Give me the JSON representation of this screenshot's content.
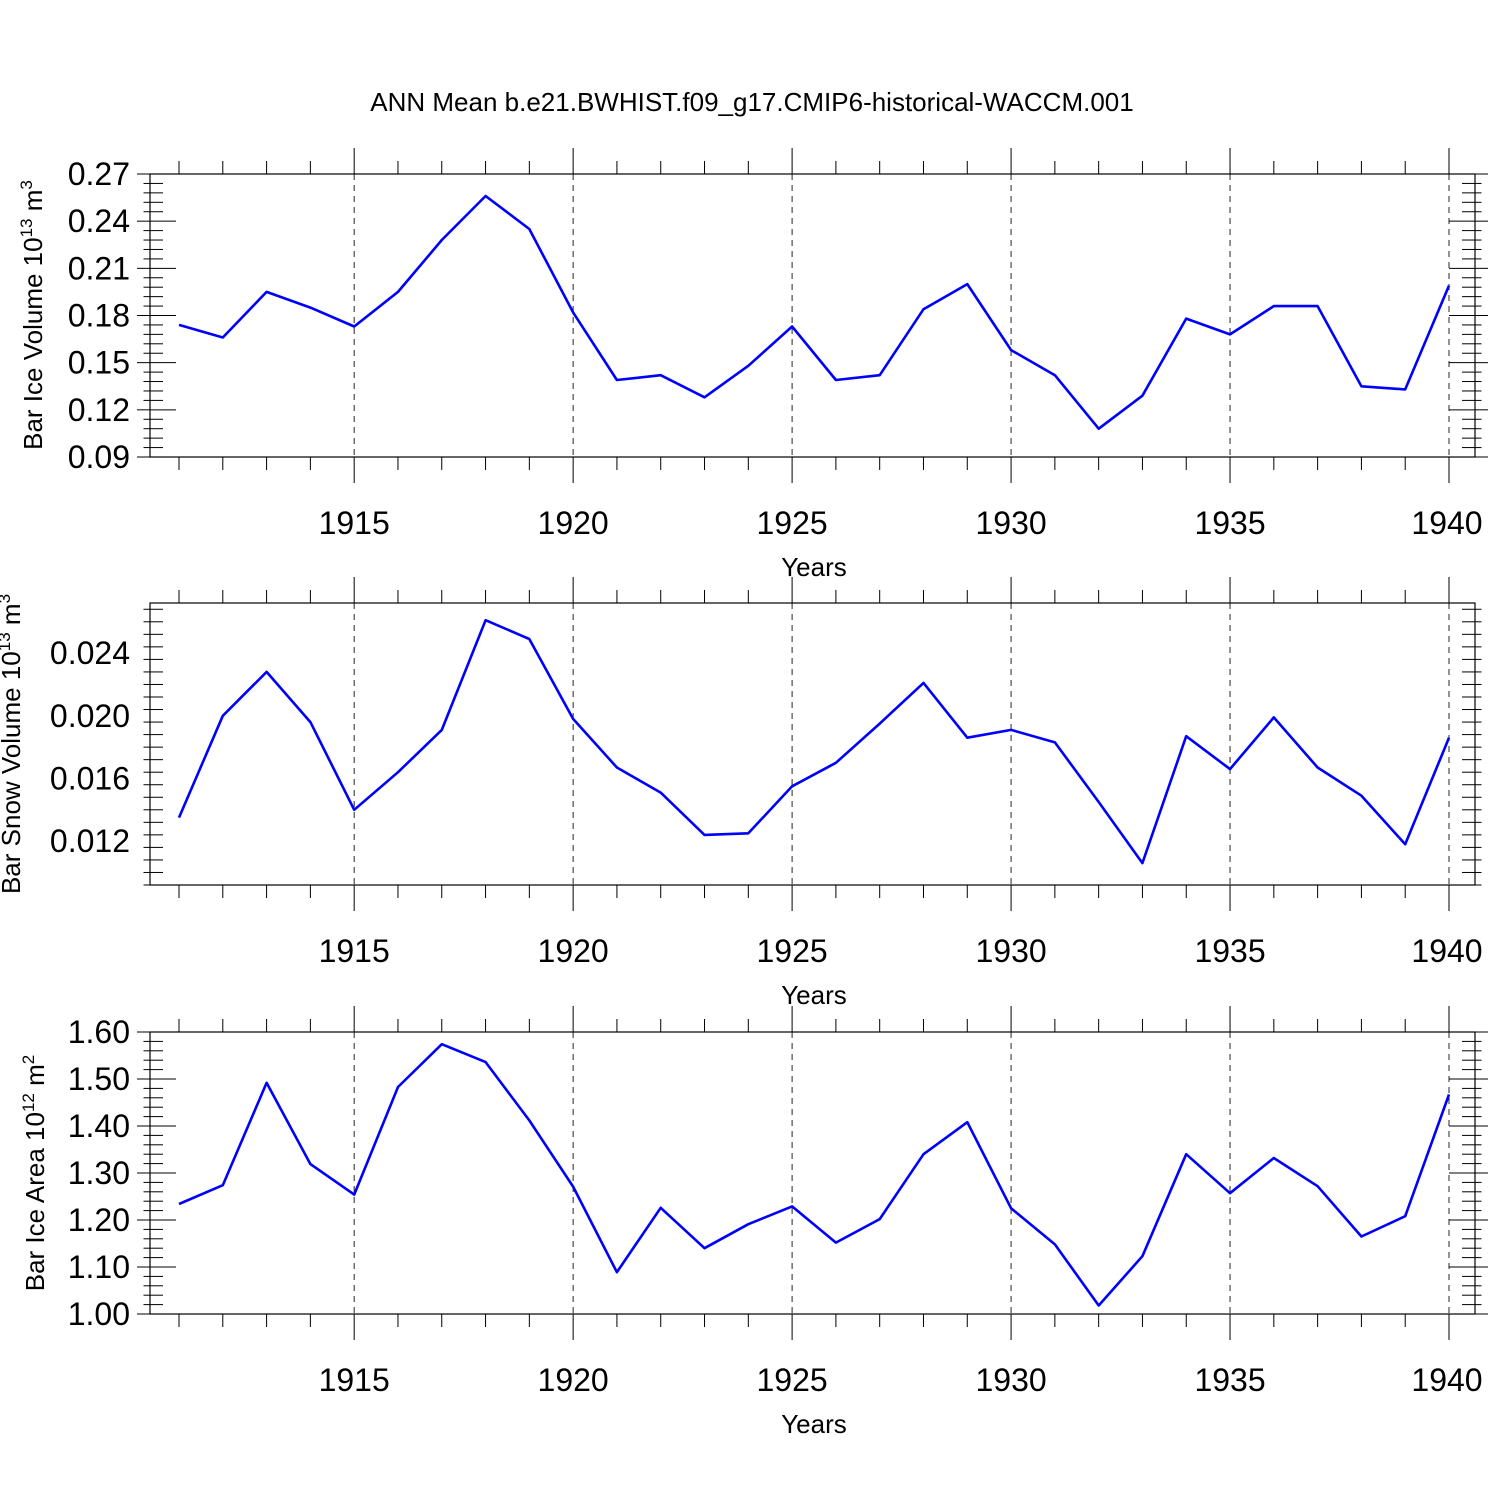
{
  "title": "ANN Mean b.e21.BWHIST.f09_g17.CMIP6-historical-WACCM.001",
  "line_color": "#0000ff",
  "chart_data": [
    {
      "type": "line",
      "ylabel": "Bar Ice Volume 10",
      "ylabel_exp": "13",
      "ylabel_unit": " m",
      "ylabel_unit_exp": "3",
      "xlabel": "Years",
      "xlim": [
        1911,
        1940
      ],
      "ylim": [
        0.09,
        0.27
      ],
      "yticks": [
        0.09,
        0.12,
        0.15,
        0.18,
        0.21,
        0.24,
        0.27
      ],
      "ytick_labels": [
        "0.09",
        "0.12",
        "0.15",
        "0.18",
        "0.21",
        "0.24",
        "0.27"
      ],
      "xticks": [
        1915,
        1920,
        1925,
        1930,
        1935,
        1940
      ],
      "xtick_labels": [
        "1915",
        "1920",
        "1925",
        "1930",
        "1935",
        "1940"
      ],
      "x": [
        1911,
        1912,
        1913,
        1914,
        1915,
        1916,
        1917,
        1918,
        1919,
        1920,
        1921,
        1922,
        1923,
        1924,
        1925,
        1926,
        1927,
        1928,
        1929,
        1930,
        1931,
        1932,
        1933,
        1934,
        1935,
        1936,
        1937,
        1938,
        1939,
        1940
      ],
      "y": [
        0.174,
        0.166,
        0.195,
        0.185,
        0.173,
        0.195,
        0.228,
        0.256,
        0.235,
        0.182,
        0.139,
        0.142,
        0.128,
        0.148,
        0.173,
        0.139,
        0.142,
        0.184,
        0.2,
        0.158,
        0.142,
        0.108,
        0.129,
        0.178,
        0.168,
        0.186,
        0.186,
        0.135,
        0.133,
        0.199
      ]
    },
    {
      "type": "line",
      "ylabel": "Bar Snow Volume 10",
      "ylabel_exp": "13",
      "ylabel_unit": " m",
      "ylabel_unit_exp": "3",
      "xlabel": "Years",
      "xlim": [
        1911,
        1940
      ],
      "ylim": [
        0.0092,
        0.0272
      ],
      "yticks": [
        0.012,
        0.016,
        0.02,
        0.024
      ],
      "ytick_labels": [
        "0.012",
        "0.016",
        "0.020",
        "0.024"
      ],
      "xticks": [
        1915,
        1920,
        1925,
        1930,
        1935,
        1940
      ],
      "xtick_labels": [
        "1915",
        "1920",
        "1925",
        "1930",
        "1935",
        "1940"
      ],
      "x": [
        1911,
        1912,
        1913,
        1914,
        1915,
        1916,
        1917,
        1918,
        1919,
        1920,
        1921,
        1922,
        1923,
        1924,
        1925,
        1926,
        1927,
        1928,
        1929,
        1930,
        1931,
        1932,
        1933,
        1934,
        1935,
        1936,
        1937,
        1938,
        1939,
        1940
      ],
      "y": [
        0.0135,
        0.02,
        0.0228,
        0.0196,
        0.014,
        0.0164,
        0.0191,
        0.0261,
        0.0249,
        0.0198,
        0.0167,
        0.0151,
        0.0124,
        0.0125,
        0.0155,
        0.017,
        0.0195,
        0.0221,
        0.0186,
        0.0191,
        0.0183,
        0.0145,
        0.0106,
        0.0187,
        0.0166,
        0.0199,
        0.0167,
        0.0149,
        0.0118,
        0.0186
      ]
    },
    {
      "type": "line",
      "ylabel": "Bar Ice Area 10",
      "ylabel_exp": "12",
      "ylabel_unit": " m",
      "ylabel_unit_exp": "2",
      "xlabel": "Years",
      "xlim": [
        1911,
        1940
      ],
      "ylim": [
        1.0,
        1.6
      ],
      "yticks": [
        1.0,
        1.1,
        1.2,
        1.3,
        1.4,
        1.5,
        1.6
      ],
      "ytick_labels": [
        "1.00",
        "1.10",
        "1.20",
        "1.30",
        "1.40",
        "1.50",
        "1.60"
      ],
      "xticks": [
        1915,
        1920,
        1925,
        1930,
        1935,
        1940
      ],
      "xtick_labels": [
        "1915",
        "1920",
        "1925",
        "1930",
        "1935",
        "1940"
      ],
      "x": [
        1911,
        1912,
        1913,
        1914,
        1915,
        1916,
        1917,
        1918,
        1919,
        1920,
        1921,
        1922,
        1923,
        1924,
        1925,
        1926,
        1927,
        1928,
        1929,
        1930,
        1931,
        1932,
        1933,
        1934,
        1935,
        1936,
        1937,
        1938,
        1939,
        1940
      ],
      "y": [
        1.234,
        1.274,
        1.492,
        1.319,
        1.254,
        1.483,
        1.574,
        1.536,
        1.412,
        1.271,
        1.089,
        1.226,
        1.14,
        1.191,
        1.229,
        1.152,
        1.202,
        1.34,
        1.408,
        1.225,
        1.148,
        1.018,
        1.123,
        1.34,
        1.257,
        1.332,
        1.272,
        1.165,
        1.208,
        1.467
      ]
    }
  ]
}
